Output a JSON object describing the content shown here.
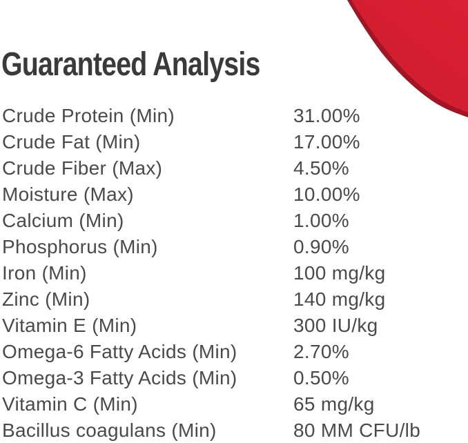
{
  "page": {
    "background": "#ffffff",
    "text_color": "#4a4a4d",
    "heading_color": "#3a3a3c",
    "accent_red": "#d61f30",
    "accent_red_light": "#da2133",
    "accent_red_deep": "#d01b2c",
    "accent_red_edge": "#a31425"
  },
  "header": {
    "title": "Guaranteed Analysis"
  },
  "analysis": {
    "rows": [
      {
        "label": "Crude Protein (Min)",
        "value": "31.00%"
      },
      {
        "label": "Crude Fat (Min)",
        "value": "17.00%"
      },
      {
        "label": "Crude Fiber (Max)",
        "value": "4.50%"
      },
      {
        "label": "Moisture (Max)",
        "value": "10.00%"
      },
      {
        "label": "Calcium (Min)",
        "value": "1.00%"
      },
      {
        "label": "Phosphorus (Min)",
        "value": "0.90%"
      },
      {
        "label": "Iron (Min)",
        "value": "100 mg/kg"
      },
      {
        "label": "Zinc (Min)",
        "value": "140 mg/kg"
      },
      {
        "label": "Vitamin E (Min)",
        "value": "300 IU/kg"
      },
      {
        "label": "Omega-6 Fatty Acids (Min)",
        "value": "2.70%"
      },
      {
        "label": "Omega-3 Fatty Acids (Min)",
        "value": "0.50%"
      },
      {
        "label": "Vitamin C (Min)",
        "value": "65 mg/kg"
      },
      {
        "label": "Bacillus coagulans (Min)",
        "value": "80 MM CFU/lb"
      }
    ]
  },
  "decoration": {
    "corner_shape": "red-wave-corner"
  }
}
